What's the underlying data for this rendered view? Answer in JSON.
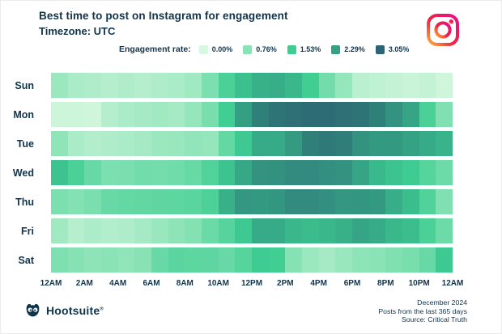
{
  "header": {
    "title": "Best time to post on Instagram for engagement",
    "subtitle": "Timezone: UTC"
  },
  "legend": {
    "label": "Engagement rate:",
    "items": [
      {
        "label": "0.00%",
        "color": "#d9f8e1"
      },
      {
        "label": "0.76%",
        "color": "#8ae3b5"
      },
      {
        "label": "1.53%",
        "color": "#3ecd92"
      },
      {
        "label": "2.29%",
        "color": "#35a083"
      },
      {
        "label": "3.05%",
        "color": "#2c6473"
      }
    ]
  },
  "chart_data": {
    "type": "heatmap",
    "title": "Best time to post on Instagram for engagement",
    "subtitle": "Timezone: UTC",
    "value_label": "Engagement rate",
    "value_unit": "%",
    "value_range": [
      0.0,
      3.05
    ],
    "x_tick_labels": [
      "12AM",
      "2AM",
      "4AM",
      "6AM",
      "8AM",
      "10AM",
      "12PM",
      "2PM",
      "4PM",
      "6PM",
      "8PM",
      "10PM",
      "12AM"
    ],
    "hours": [
      "12AM",
      "1AM",
      "2AM",
      "3AM",
      "4AM",
      "5AM",
      "6AM",
      "7AM",
      "8AM",
      "9AM",
      "10AM",
      "11AM",
      "12PM",
      "1PM",
      "2PM",
      "3PM",
      "4PM",
      "5PM",
      "6PM",
      "7PM",
      "8PM",
      "9PM",
      "10PM",
      "11PM"
    ],
    "days": [
      "Sun",
      "Mon",
      "Tue",
      "Wed",
      "Thu",
      "Fri",
      "Sat"
    ],
    "series": [
      {
        "name": "Sun",
        "values": [
          0.6,
          0.45,
          0.4,
          0.35,
          0.4,
          0.35,
          0.4,
          0.45,
          0.55,
          0.9,
          1.4,
          1.75,
          2.0,
          2.05,
          1.9,
          1.5,
          1.0,
          0.65,
          0.3,
          0.25,
          0.2,
          0.15,
          0.2,
          0.1
        ]
      },
      {
        "name": "Mon",
        "values": [
          0.12,
          0.12,
          0.1,
          0.35,
          0.45,
          0.5,
          0.55,
          0.5,
          0.65,
          0.95,
          1.5,
          2.3,
          2.7,
          2.85,
          2.9,
          2.95,
          2.95,
          2.9,
          2.85,
          2.7,
          2.45,
          2.2,
          1.4,
          0.85
        ]
      },
      {
        "name": "Tue",
        "values": [
          0.7,
          0.45,
          0.38,
          0.4,
          0.45,
          0.5,
          0.6,
          0.62,
          0.68,
          0.65,
          1.15,
          1.6,
          2.1,
          2.1,
          2.35,
          2.7,
          2.78,
          2.72,
          2.45,
          2.38,
          2.38,
          2.25,
          2.1,
          1.95
        ]
      },
      {
        "name": "Wed",
        "values": [
          1.7,
          1.4,
          1.1,
          0.9,
          0.92,
          1.0,
          0.98,
          1.02,
          1.12,
          1.35,
          1.7,
          2.15,
          2.45,
          2.48,
          2.55,
          2.55,
          2.5,
          2.45,
          2.2,
          1.85,
          1.7,
          1.55,
          1.3,
          1.05
        ]
      },
      {
        "name": "Thu",
        "values": [
          0.9,
          0.82,
          0.92,
          1.1,
          1.15,
          1.17,
          1.2,
          1.22,
          1.25,
          1.38,
          2.0,
          2.4,
          2.38,
          2.42,
          2.55,
          2.55,
          2.5,
          2.4,
          2.42,
          2.38,
          2.05,
          1.8,
          1.35,
          0.85
        ]
      },
      {
        "name": "Fri",
        "values": [
          0.55,
          0.33,
          0.42,
          0.38,
          0.4,
          0.5,
          0.62,
          0.72,
          0.82,
          1.08,
          1.28,
          1.6,
          2.1,
          2.1,
          1.9,
          1.82,
          1.88,
          2.0,
          2.2,
          2.1,
          1.9,
          1.8,
          1.4,
          1.05
        ]
      },
      {
        "name": "Sat",
        "values": [
          0.88,
          0.8,
          0.72,
          0.76,
          0.7,
          0.78,
          1.1,
          1.25,
          1.22,
          1.2,
          1.1,
          1.3,
          1.55,
          1.5,
          0.8,
          0.6,
          0.5,
          0.63,
          0.73,
          0.77,
          0.86,
          0.95,
          1.1,
          1.6
        ]
      }
    ],
    "color_scale": {
      "stops": [
        {
          "value": 0.0,
          "color": "#d9f8e1"
        },
        {
          "value": 0.76,
          "color": "#8ae3b5"
        },
        {
          "value": 1.53,
          "color": "#3ecd92"
        },
        {
          "value": 2.29,
          "color": "#35a083"
        },
        {
          "value": 3.05,
          "color": "#2c6473"
        }
      ]
    },
    "legend_position": "top"
  },
  "branding": {
    "wordmark": "Hootsuite",
    "registered_mark": "®",
    "text_color": "#10344c"
  },
  "footer": {
    "lines": [
      "December 2024",
      "Posts from the last 365 days",
      "Source: Critical Truth"
    ]
  }
}
